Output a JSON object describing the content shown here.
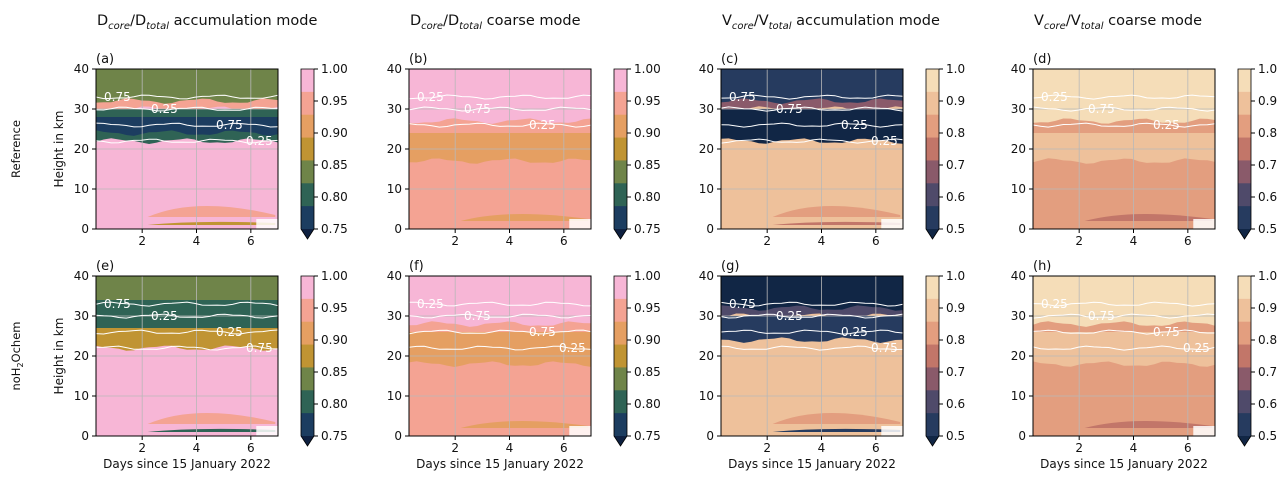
{
  "chart_data": {
    "type": "heatmap",
    "x_range_days": [
      0.3,
      7
    ],
    "y_range_km": [
      0,
      40
    ],
    "x_ticks": [
      2,
      4,
      6
    ],
    "y_ticks": [
      0,
      10,
      20,
      30,
      40
    ],
    "grid": true,
    "column_titles": [
      {
        "main": "D",
        "sub1": "core",
        "slash": "/D",
        "sub2": "total",
        "tail": " accumulation mode"
      },
      {
        "main": "D",
        "sub1": "core",
        "slash": "/D",
        "sub2": "total",
        "tail": " coarse mode"
      },
      {
        "main": "V",
        "sub1": "core",
        "slash": "/V",
        "sub2": "total",
        "tail": " accumulation mode"
      },
      {
        "main": "V",
        "sub1": "core",
        "slash": "/V",
        "sub2": "total",
        "tail": " coarse mode"
      }
    ],
    "row_labels": [
      {
        "text": "Reference"
      },
      {
        "text": "noH",
        "sub": "2",
        "tail": "Ochem"
      }
    ],
    "ylabel": "Height in km",
    "xlabel": "Days since 15 January 2022",
    "colorbars": [
      {
        "ticks": [
          "1.00",
          "0.95",
          "0.90",
          "0.85",
          "0.80",
          "0.75"
        ],
        "colors": [
          "#f7b6d6",
          "#f4a393",
          "#e59f62",
          "#c09433",
          "#6f8449",
          "#2f6355",
          "#1c3d60",
          "#0e2040"
        ]
      },
      {
        "ticks": [
          "1.0",
          "0.9",
          "0.8",
          "0.7",
          "0.6",
          "0.5"
        ],
        "colors": [
          "#f5ddb8",
          "#eec19b",
          "#e39e7f",
          "#c27669",
          "#8a5a6a",
          "#4f4a6a",
          "#263b5f",
          "#112645"
        ]
      }
    ],
    "panels": [
      {
        "letter": "(a)",
        "row": 0,
        "col": 0,
        "cmap": 0,
        "base": "#f7b6d6",
        "upper": [
          [
            "#f4a393",
            30,
            40
          ],
          [
            "#6f8449",
            32,
            40
          ],
          [
            "#2f6355",
            22,
            30
          ],
          [
            "#1c3d60",
            24,
            28
          ]
        ],
        "streaks": [
          [
            "#f4a393",
            3,
            8
          ],
          [
            "#c09433",
            1,
            2
          ]
        ],
        "contours": [
          "0.75",
          "0.25",
          "0.75",
          "0.25"
        ]
      },
      {
        "letter": "(b)",
        "row": 0,
        "col": 1,
        "cmap": 0,
        "base": "#f4a393",
        "upper": [
          [
            "#f7b6d6",
            27,
            40
          ],
          [
            "#e59f62",
            17,
            24
          ]
        ],
        "streaks": [
          [
            "#e59f62",
            2,
            5
          ]
        ],
        "contours": [
          "0.25",
          "0.75",
          "0.25"
        ]
      },
      {
        "letter": "(c)",
        "row": 0,
        "col": 2,
        "cmap": 1,
        "base": "#eec19b",
        "upper": [
          [
            "#8a5a6a",
            30,
            40
          ],
          [
            "#263b5f",
            32,
            40
          ],
          [
            "#112645",
            22,
            30
          ]
        ],
        "streaks": [
          [
            "#e39e7f",
            3,
            8
          ],
          [
            "#c27669",
            1,
            2
          ]
        ],
        "contours": [
          "0.75",
          "0.75",
          "0.25",
          "0.25"
        ]
      },
      {
        "letter": "(d)",
        "row": 0,
        "col": 3,
        "cmap": 1,
        "base": "#e39e7f",
        "upper": [
          [
            "#f5ddb8",
            27,
            40
          ],
          [
            "#eec19b",
            17,
            24
          ]
        ],
        "streaks": [
          [
            "#c27669",
            2,
            5
          ]
        ],
        "contours": [
          "0.25",
          "0.75",
          "0.25"
        ]
      },
      {
        "letter": "(e)",
        "row": 1,
        "col": 0,
        "cmap": 0,
        "base": "#f7b6d6",
        "upper": [
          [
            "#6f8449",
            30,
            40
          ],
          [
            "#2f6355",
            26,
            34
          ],
          [
            "#c09433",
            22,
            27
          ]
        ],
        "streaks": [
          [
            "#f4a393",
            3,
            8
          ],
          [
            "#2f6355",
            1,
            2
          ]
        ],
        "contours": [
          "0.75",
          "0.25",
          "0.25",
          "0.75"
        ]
      },
      {
        "letter": "(f)",
        "row": 1,
        "col": 1,
        "cmap": 0,
        "base": "#f4a393",
        "upper": [
          [
            "#f7b6d6",
            28,
            40
          ],
          [
            "#e59f62",
            18,
            26
          ]
        ],
        "streaks": [
          [
            "#e59f62",
            2,
            5
          ]
        ],
        "contours": [
          "0.25",
          "0.75",
          "0.75",
          "0.25"
        ]
      },
      {
        "letter": "(g)",
        "row": 1,
        "col": 2,
        "cmap": 1,
        "base": "#eec19b",
        "upper": [
          [
            "#4f4a6a",
            30,
            40
          ],
          [
            "#112645",
            32,
            40
          ],
          [
            "#263b5f",
            24,
            30
          ]
        ],
        "streaks": [
          [
            "#e39e7f",
            3,
            8
          ],
          [
            "#263b5f",
            1,
            2
          ]
        ],
        "contours": [
          "0.75",
          "0.25",
          "0.25",
          "0.75"
        ]
      },
      {
        "letter": "(h)",
        "row": 1,
        "col": 3,
        "cmap": 1,
        "base": "#e39e7f",
        "upper": [
          [
            "#f5ddb8",
            28,
            40
          ],
          [
            "#eec19b",
            18,
            26
          ]
        ],
        "streaks": [
          [
            "#c27669",
            2,
            5
          ]
        ],
        "contours": [
          "0.25",
          "0.75",
          "0.75",
          "0.25"
        ]
      }
    ]
  }
}
